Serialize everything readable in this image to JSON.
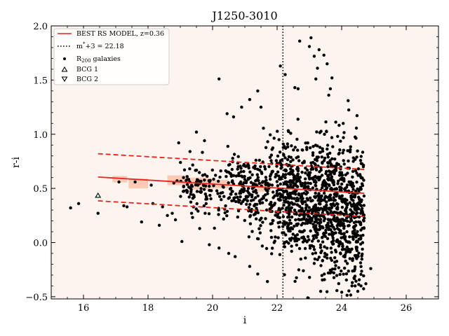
{
  "chart_data": {
    "type": "scatter",
    "title": "J1250-3010",
    "xlabel": "i",
    "ylabel": "r-i",
    "xlim": [
      15,
      27
    ],
    "ylim": [
      -0.52,
      2.0
    ],
    "x_ticks": [
      16,
      18,
      20,
      22,
      24,
      26
    ],
    "x_tick_labels": [
      "16",
      "18",
      "20",
      "22",
      "24",
      "26"
    ],
    "y_ticks": [
      -0.5,
      0.0,
      0.5,
      1.0,
      1.5,
      2.0
    ],
    "y_tick_labels": [
      "−0.5",
      "0.0",
      "0.5",
      "1.0",
      "1.5",
      "2.0"
    ],
    "grid": false,
    "legend_position": "top-left",
    "background_color": "#fdf3ef",
    "rs_model": {
      "label": "BEST RS MODEL, z=0.36",
      "color": "#e8231a",
      "x": [
        16.45,
        24.7
      ],
      "y": [
        0.605,
        0.455
      ],
      "upper": {
        "x": [
          16.45,
          24.7
        ],
        "y": [
          0.82,
          0.675
        ]
      },
      "lower": {
        "x": [
          16.45,
          24.7
        ],
        "y": [
          0.385,
          0.24
        ]
      }
    },
    "mstar_line": {
      "label": "m$^{*}$+3 = 22.18",
      "label_main": "m",
      "label_sup": "*",
      "label_rest": "+3 = 22.18",
      "x": 22.18
    },
    "galaxies_label": "R",
    "galaxies_label_sub": "200",
    "galaxies_label_rest": " galaxies",
    "bcg1": {
      "label": "BCG 1",
      "x": 16.45,
      "y": 0.43
    },
    "bcg2": {
      "label": "BCG 2"
    },
    "highlight_bins": [
      {
        "x0": 16.9,
        "x1": 17.35,
        "y0": 0.555,
        "y1": 0.615
      },
      {
        "x0": 17.4,
        "x1": 18.0,
        "y0": 0.5,
        "y1": 0.59
      },
      {
        "x0": 18.6,
        "x1": 19.25,
        "y0": 0.53,
        "y1": 0.62
      },
      {
        "x0": 19.25,
        "x1": 19.9,
        "y0": 0.49,
        "y1": 0.6
      },
      {
        "x0": 19.9,
        "x1": 20.5,
        "y0": 0.5,
        "y1": 0.58
      },
      {
        "x0": 21.2,
        "x1": 21.8,
        "y0": 0.47,
        "y1": 0.56
      }
    ],
    "bright_points": [
      [
        15.6,
        0.32
      ],
      [
        15.85,
        0.36
      ],
      [
        16.45,
        0.27
      ],
      [
        17.1,
        0.56
      ],
      [
        17.25,
        0.34
      ],
      [
        17.35,
        0.33
      ],
      [
        17.6,
        0.56
      ],
      [
        17.8,
        0.19
      ],
      [
        18.1,
        0.53
      ],
      [
        18.15,
        0.36
      ],
      [
        18.35,
        0.16
      ],
      [
        18.45,
        0.33
      ],
      [
        18.6,
        0.25
      ],
      [
        18.75,
        0.27
      ],
      [
        18.85,
        0.21
      ],
      [
        18.95,
        0.92
      ],
      [
        19.05,
        0.01
      ],
      [
        19.1,
        0.6
      ],
      [
        18.9,
        0.57
      ],
      [
        18.8,
        0.55
      ],
      [
        19.3,
        0.84
      ],
      [
        19.55,
        0.29
      ],
      [
        19.5,
        1.02
      ],
      [
        19.75,
        0.94
      ],
      [
        20.2,
        1.51
      ],
      [
        20.45,
        1.19
      ],
      [
        20.65,
        1.16
      ],
      [
        20.9,
        1.25
      ],
      [
        21.15,
        1.32
      ],
      [
        21.4,
        1.4
      ],
      [
        21.5,
        1.25
      ],
      [
        22.1,
        1.63
      ],
      [
        22.25,
        1.55
      ],
      [
        22.55,
        1.43
      ],
      [
        22.65,
        1.42
      ],
      [
        23.3,
        1.78
      ],
      [
        23.15,
        1.72
      ],
      [
        23.0,
        1.81
      ],
      [
        23.05,
        1.89
      ],
      [
        23.45,
        1.73
      ],
      [
        23.7,
        1.52
      ],
      [
        23.65,
        1.42
      ],
      [
        23.6,
        1.36
      ],
      [
        23.25,
        1.61
      ],
      [
        23.2,
        1.51
      ],
      [
        22.7,
        1.86
      ],
      [
        23.55,
        1.65
      ],
      [
        24.2,
        1.31
      ],
      [
        24.9,
        -0.24
      ],
      [
        24.6,
        -0.4
      ],
      [
        24.75,
        -0.38
      ],
      [
        24.5,
        -0.45
      ],
      [
        22.95,
        -0.51
      ],
      [
        23.35,
        -0.45
      ],
      [
        21.7,
        -0.36
      ],
      [
        21.4,
        -0.29
      ],
      [
        21.15,
        -0.22
      ],
      [
        20.7,
        -0.13
      ],
      [
        20.5,
        -0.1
      ],
      [
        20.2,
        -0.05
      ],
      [
        19.9,
        -0.02
      ],
      [
        19.6,
        0.13
      ],
      [
        19.35,
        0.27
      ],
      [
        19.4,
        0.44
      ],
      [
        19.65,
        0.47
      ],
      [
        19.8,
        0.36
      ]
    ],
    "seed": 12503010
  }
}
